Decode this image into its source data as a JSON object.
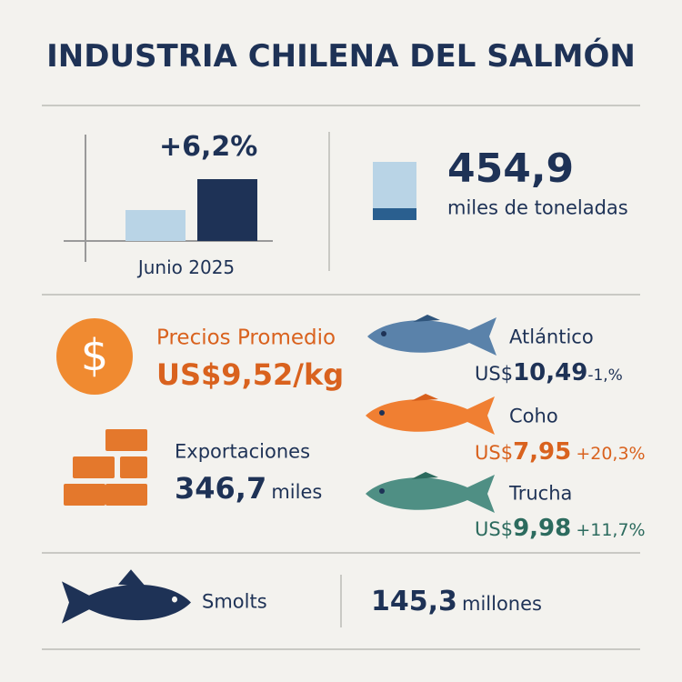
{
  "title": "INDUSTRIA CHILENA DEL SALMÓN",
  "growth": {
    "change": "+6,2%",
    "period": "Junio 2025"
  },
  "production": {
    "value": "454,9",
    "unit": "miles de toneladas"
  },
  "prices": {
    "label": "Precios Promedio",
    "value": "US$9,52/kg"
  },
  "exports": {
    "label": "Exportaciones",
    "value": "346,7",
    "unit": "miles"
  },
  "species": [
    {
      "name": "Atlántico",
      "currency": "US$",
      "price": "10,49",
      "change": "-1,%"
    },
    {
      "name": "Coho",
      "currency": "US$",
      "price": "7,95",
      "change": "+20,3%"
    },
    {
      "name": "Trucha",
      "currency": "US$",
      "price": "9,98",
      "change": "+11,7%"
    }
  ],
  "smolts": {
    "label": "Smolts",
    "value": "145,3",
    "unit": "millones"
  }
}
